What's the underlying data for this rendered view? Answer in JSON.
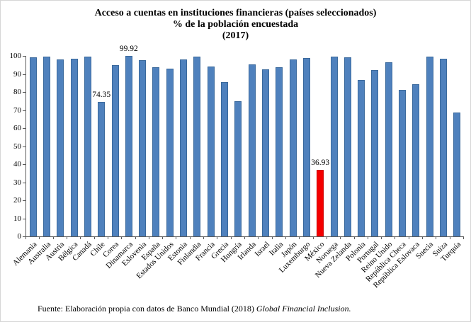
{
  "source": {
    "prefix": "Fuente: Elaboración propia con datos de Banco Mundial (2018) ",
    "italic_title": "Global Financial Inclusion."
  },
  "colors": {
    "bar": "#4f81bd",
    "bar_border": "#3a699c",
    "highlight": "#f40000",
    "highlight_border": "#cc0000",
    "axis": "#595959",
    "text": "#000000"
  },
  "chart_data": {
    "type": "bar",
    "title": "Acceso a cuentas en instituciones financieras (países seleccionados)",
    "subtitle": "% de la población encuestada",
    "year_label": "(2017)",
    "xlabel": "",
    "ylabel": "",
    "ylim": [
      0,
      100
    ],
    "yticks": [
      0,
      10,
      20,
      30,
      40,
      50,
      60,
      70,
      80,
      90,
      100
    ],
    "grid": false,
    "legend": false,
    "categories": [
      "Alemania",
      "Australia",
      "Austria",
      "Bélgica",
      "Canadá",
      "Chile",
      "Corea",
      "Dinamarca",
      "Eslovenia",
      "España",
      "Estados Unidos",
      "Estonia",
      "Finlandia",
      "Francia",
      "Grecia",
      "Hungría",
      "Irlanda",
      "Israel",
      "Italia",
      "Japón",
      "Luxemburgo",
      "México",
      "Noruega",
      "Nueva Zelanda",
      "Polonia",
      "Portugal",
      "Reino Unido",
      "República Checa",
      "República Eslovaca",
      "Suecia",
      "Suiza",
      "Turquía"
    ],
    "values": [
      99.1,
      99.5,
      98.2,
      98.6,
      99.7,
      74.35,
      94.9,
      99.92,
      97.5,
      93.8,
      93.1,
      98.0,
      99.8,
      94.0,
      85.5,
      74.9,
      95.3,
      92.5,
      93.7,
      98.2,
      98.8,
      36.93,
      99.8,
      99.3,
      86.7,
      92.3,
      96.4,
      81.0,
      84.3,
      99.7,
      98.3,
      68.6
    ],
    "highlighted_category": "México",
    "data_labels": {
      "Chile": "74.35",
      "Dinamarca": "99.92",
      "México": "36.93"
    }
  }
}
